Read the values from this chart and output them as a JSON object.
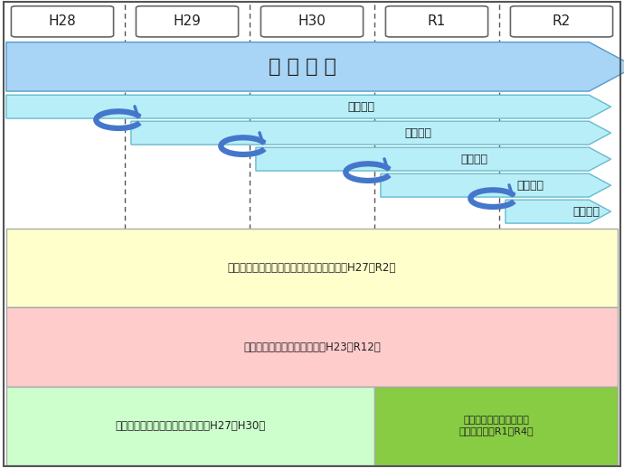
{
  "fig_width": 6.9,
  "fig_height": 5.18,
  "dpi": 100,
  "bg_color": "#ffffff",
  "border_color": "#555555",
  "years": [
    "H28",
    "H29",
    "H30",
    "R1",
    "R2"
  ],
  "year_box_color": "#ffffff",
  "year_box_edge": "#666666",
  "dashed_line_color": "#555555",
  "kihon_label": "基 本 構 想",
  "kihon_color": "#a8d4f5",
  "kihon_edge": "#5599cc",
  "suishin_label": "推進計画",
  "suishin_color": "#b8eef8",
  "suishin_edge": "#66bbcc",
  "arrow_color": "#2255aa",
  "arrow_fill": "#4477cc",
  "machihito_label": "秋田市まち・ひと・しごと創生総合戦略（H27～R2）",
  "machihito_color": "#ffffcc",
  "machihito_edge": "#aaaaaa",
  "sogotoshi_label": "第６次秋田市総合都市計画（H23～R12）",
  "sogotoshi_color": "#ffcccc",
  "sogotoshi_edge": "#aaaaaa",
  "kentoLeft_label": "新・県都『あきた』改革プラン（H27～H30）",
  "kentoLeft_color": "#ccffcc",
  "kentoLeft_edge": "#aaaaaa",
  "kentoRight_label": "第３期・県都『あきた』\n改革プラン（R1～R4）",
  "kentoRight_color": "#88cc44",
  "kentoRight_edge": "#aaaaaa",
  "col_boundaries": [
    1.0,
    2.0,
    3.0,
    4.0
  ],
  "year_xs": [
    0.5,
    1.5,
    2.5,
    3.5,
    4.5
  ]
}
